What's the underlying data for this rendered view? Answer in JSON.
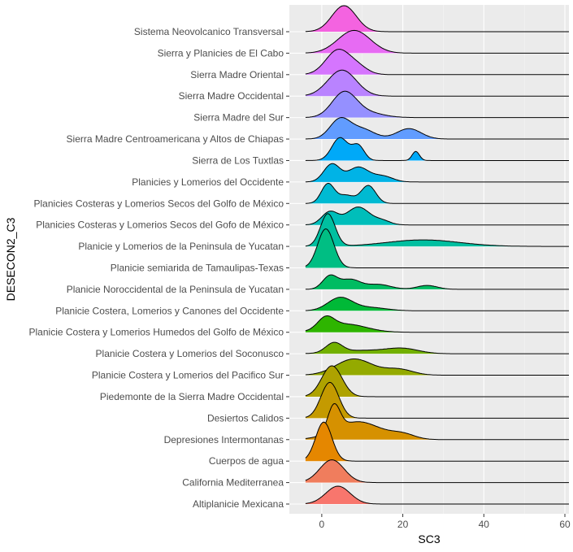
{
  "chart_data": {
    "type": "ridgeline",
    "xlabel": "SC3",
    "ylabel": "DESECON2_C3",
    "xlim": [
      -8,
      61
    ],
    "x_ticks": [
      0,
      20,
      40,
      60
    ],
    "grid": true,
    "legend": "none",
    "categories": [
      "Altiplanicie Mexicana",
      "California Mediterranea",
      "Cuerpos de agua",
      "Depresiones Intermontanas",
      "Desiertos Calidos",
      "Piedemonte de la Sierra Madre Occidental",
      "Planicie Costera y Lomerios del Pacifico Sur",
      "Planicie Costera y Lomerios del Soconusco",
      "Planicie Costera y Lomerios Humedos del Golfo de México",
      "Planicie Costera, Lomerios y Canones del Occidente",
      "Planicie Noroccidental de la  Peninsula de Yucatan",
      "Planicie semiarida de Tamaulipas-Texas",
      "Planicie y Lomerios de la Peninsula de Yucatan",
      "Planicies Costeras y Lomerios Secos del Gofo de México",
      "Planicies Costeras y Lomerios Secos del Golfo de México",
      "Planicies y Lomerios del Occidente",
      "Sierra de Los Tuxtlas",
      "Sierra Madre Centroamericana y Altos de Chiapas",
      "Sierra Madre del Sur",
      "Sierra Madre Occidental",
      "Sierra Madre Oriental",
      "Sierra y Planicies de El Cabo",
      "Sistema Neovolcanico Transversal"
    ],
    "series": [
      {
        "color": "#F8766D",
        "range": [
          -4,
          61
        ],
        "components": [
          [
            4,
            3.0,
            0.55
          ]
        ]
      },
      {
        "color": "#F07D5D",
        "range": [
          -4,
          61
        ],
        "components": [
          [
            2.5,
            3.0,
            0.7
          ]
        ]
      },
      {
        "color": "#E58700",
        "range": [
          -4,
          61
        ],
        "components": [
          [
            0.5,
            2.0,
            1.2
          ]
        ]
      },
      {
        "color": "#D69100",
        "range": [
          -4,
          61
        ],
        "components": [
          [
            3,
            1.5,
            0.8
          ],
          [
            9,
            5.5,
            0.55
          ],
          [
            20,
            3.0,
            0.15
          ]
        ]
      },
      {
        "color": "#C49A00",
        "range": [
          -4,
          61
        ],
        "components": [
          [
            2,
            2.2,
            1.1
          ]
        ]
      },
      {
        "color": "#AEA200",
        "range": [
          -4,
          61
        ],
        "components": [
          [
            2.5,
            2.5,
            0.95
          ]
        ]
      },
      {
        "color": "#94AA00",
        "range": [
          -4,
          61
        ],
        "components": [
          [
            8,
            4.5,
            0.5
          ],
          [
            19,
            3.5,
            0.18
          ]
        ]
      },
      {
        "color": "#72B000",
        "range": [
          -4,
          61
        ],
        "components": [
          [
            3,
            2.0,
            0.3
          ],
          [
            20,
            4.0,
            0.15
          ],
          [
            10,
            6.0,
            0.1
          ]
        ]
      },
      {
        "color": "#2EB500",
        "range": [
          -4,
          61
        ],
        "components": [
          [
            1,
            2.0,
            0.35
          ],
          [
            6,
            5.0,
            0.25
          ]
        ]
      },
      {
        "color": "#00B937",
        "range": [
          -4,
          61
        ],
        "components": [
          [
            4.5,
            3.0,
            0.4
          ],
          [
            12,
            4.0,
            0.1
          ]
        ]
      },
      {
        "color": "#00BC62",
        "range": [
          -4,
          61
        ],
        "components": [
          [
            2,
            1.8,
            0.4
          ],
          [
            7,
            2.5,
            0.3
          ],
          [
            14,
            3.0,
            0.15
          ],
          [
            26,
            2.5,
            0.12
          ]
        ]
      },
      {
        "color": "#00BE83",
        "range": [
          -4,
          61
        ],
        "components": [
          [
            1,
            2.0,
            1.2
          ]
        ]
      },
      {
        "color": "#00BFA0",
        "range": [
          -4,
          61
        ],
        "components": [
          [
            1.5,
            1.8,
            1.0
          ],
          [
            25,
            9.0,
            0.2
          ]
        ]
      },
      {
        "color": "#00BEBA",
        "range": [
          -4,
          61
        ],
        "components": [
          [
            2,
            2.0,
            0.4
          ],
          [
            9,
            2.8,
            0.55
          ],
          [
            15,
            2.0,
            0.12
          ]
        ]
      },
      {
        "color": "#00BAD2",
        "range": [
          -4,
          61
        ],
        "components": [
          [
            1.5,
            1.6,
            0.6
          ],
          [
            6,
            2.0,
            0.25
          ],
          [
            11.5,
            1.8,
            0.55
          ]
        ]
      },
      {
        "color": "#00B3E6",
        "range": [
          -4,
          61
        ],
        "components": [
          [
            2.5,
            2.0,
            0.55
          ],
          [
            9,
            2.5,
            0.45
          ],
          [
            15,
            2.5,
            0.18
          ]
        ]
      },
      {
        "color": "#00A9F8",
        "range": [
          -4,
          61
        ],
        "components": [
          [
            4.5,
            2.0,
            0.7
          ],
          [
            9,
            1.5,
            0.45
          ],
          [
            23.2,
            0.9,
            0.28
          ]
        ]
      },
      {
        "color": "#619CFF",
        "range": [
          -4,
          61
        ],
        "components": [
          [
            4.5,
            2.5,
            0.6
          ],
          [
            10,
            3.0,
            0.3
          ],
          [
            21.5,
            3.0,
            0.32
          ]
        ]
      },
      {
        "color": "#9590FF",
        "range": [
          -4,
          61
        ],
        "components": [
          [
            5.5,
            3.0,
            0.75
          ],
          [
            11,
            4.0,
            0.15
          ]
        ]
      },
      {
        "color": "#B983FF",
        "range": [
          -4,
          61
        ],
        "components": [
          [
            5,
            3.5,
            0.8
          ]
        ]
      },
      {
        "color": "#D575FE",
        "range": [
          -4,
          61
        ],
        "components": [
          [
            4,
            3.0,
            0.75
          ],
          [
            9,
            2.5,
            0.2
          ]
        ]
      },
      {
        "color": "#E76BF3",
        "range": [
          -4,
          61
        ],
        "components": [
          [
            8,
            4.0,
            0.7
          ]
        ]
      },
      {
        "color": "#F463E0",
        "range": [
          -4,
          61
        ],
        "components": [
          [
            5.5,
            3.0,
            0.8
          ]
        ]
      }
    ]
  }
}
